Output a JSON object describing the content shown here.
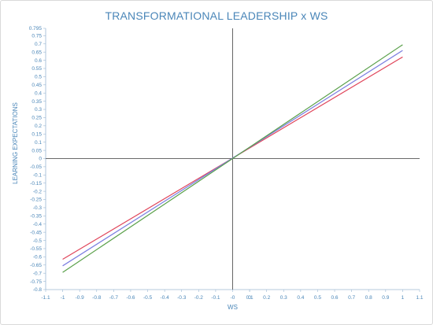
{
  "chart_data": {
    "type": "line",
    "title": "TRANSFORMATIONAL LEADERSHIP x WS",
    "xlabel": "WS",
    "ylabel": "LEARNING EXPECTATIONS",
    "xlim": [
      -1.1,
      1.1
    ],
    "ylim": [
      -0.8,
      0.795
    ],
    "x_ticks": [
      "-1.1",
      "-1",
      "-0.9",
      "-0.8",
      "-0.7",
      "-0.6",
      "-0.5",
      "-0.4",
      "-0.3",
      "-0.2",
      "-0.1",
      "-0",
      "0",
      "0.1",
      "0.2",
      "0.3",
      "0.4",
      "0.5",
      "0.6",
      "0.7",
      "0.8",
      "0.9",
      "1",
      "1.1"
    ],
    "y_ticks": [
      "0.795",
      "0.75",
      "0.7",
      "0.65",
      "0.6",
      "0.55",
      "0.5",
      "0.45",
      "0.4",
      "0.35",
      "0.3",
      "0.25",
      "0.2",
      "0.15",
      "0.1",
      "0.05",
      "0",
      "-0.05",
      "-0.1",
      "-0.15",
      "-0.2",
      "-0.25",
      "-0.3",
      "-0.35",
      "-0.4",
      "-0.45",
      "-0.5",
      "-0.55",
      "-0.6",
      "-0.65",
      "-0.7",
      "-0.75",
      "-0.8"
    ],
    "series": [
      {
        "color": "#e0455a",
        "x": [
          -1,
          1
        ],
        "y": [
          -0.615,
          0.62
        ]
      },
      {
        "color": "#7b7fe0",
        "x": [
          -1,
          1
        ],
        "y": [
          -0.655,
          0.66
        ]
      },
      {
        "color": "#5aa04a",
        "x": [
          -1,
          1
        ],
        "y": [
          -0.695,
          0.695
        ]
      }
    ],
    "grid": false,
    "legend": "none"
  }
}
